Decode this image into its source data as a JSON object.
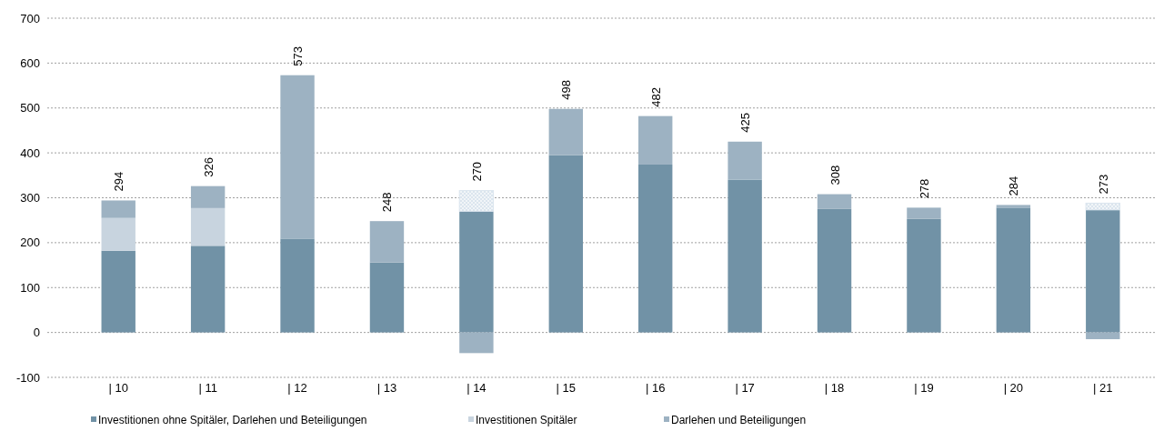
{
  "chart_data": {
    "type": "bar",
    "stacked": true,
    "categories": [
      "| 10",
      "| 11",
      "| 12",
      "| 13",
      "| 14",
      "|  15",
      "| 16",
      "| 17",
      "| 18",
      "| 19",
      "| 20",
      "| 21"
    ],
    "series": [
      {
        "name": "Investitionen ohne Spitäler, Darlehen und Beteiligungen",
        "color": "#7192a6",
        "values": [
          182,
          193,
          209,
          156,
          270,
          395,
          374,
          340,
          275,
          253,
          278,
          273
        ]
      },
      {
        "name": "Investitionen Spitäler",
        "color": "#c8d4df",
        "values": [
          73,
          84,
          null,
          null,
          null,
          null,
          null,
          null,
          null,
          null,
          null,
          null
        ]
      },
      {
        "name": "Darlehen und Beteiligungen",
        "color": "#9db2c2",
        "values": [
          39,
          49,
          364,
          92,
          -46,
          103,
          108,
          85,
          33,
          25,
          6,
          -15
        ]
      },
      {
        "color": "#dbe5ee",
        "values": [
          null,
          null,
          null,
          null,
          46,
          null,
          null,
          null,
          null,
          null,
          null,
          15
        ]
      }
    ],
    "totals": [
      "294",
      "326",
      "573",
      "248",
      "270",
      "498",
      "482",
      "425",
      "308",
      "278",
      "284",
      "273"
    ],
    "ylim": [
      -100,
      700
    ],
    "yticks": [
      -100,
      0,
      100,
      200,
      300,
      400,
      500,
      600,
      700
    ],
    "grid": "y",
    "legend": "bottom"
  }
}
